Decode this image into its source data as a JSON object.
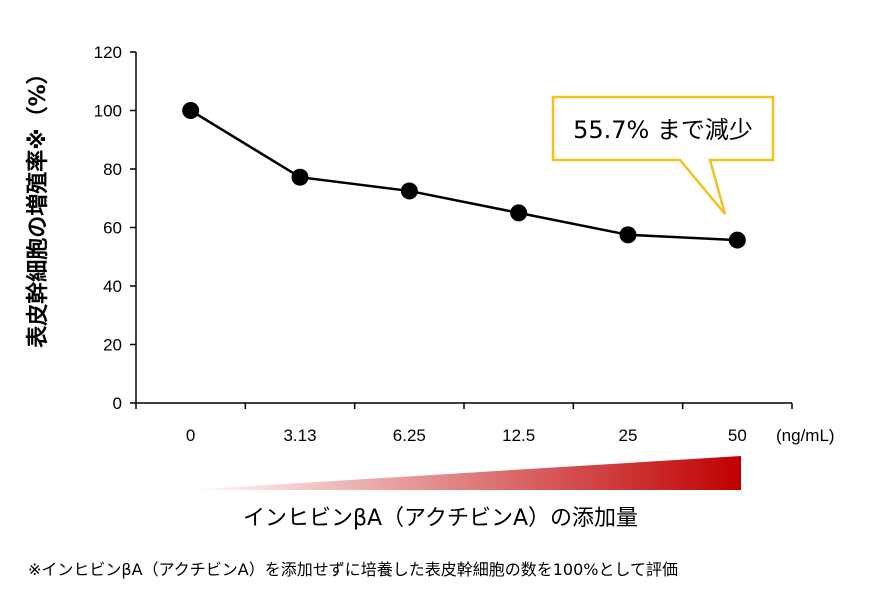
{
  "chart_data": {
    "type": "line",
    "categories": [
      "0",
      "3.13",
      "6.25",
      "12.5",
      "25",
      "50"
    ],
    "values": [
      100,
      77.2,
      72.5,
      65.0,
      57.5,
      55.7
    ],
    "x_unit": "(ng/mL)",
    "ylabel": "表皮幹細胞の増殖率※（%）",
    "xlabel": "インヒビンβA（アクチビンA）の添加量",
    "yticks": [
      0,
      20,
      40,
      60,
      80,
      100,
      120
    ],
    "ylim": [
      0,
      120
    ],
    "grid": false,
    "legend": "none",
    "annotation": "55.7% まで減少",
    "line_color": "#000000",
    "marker_color": "#000000",
    "callout_border": "#f2c21b",
    "gradient_start": "#ffffff",
    "gradient_end": "#c00000"
  },
  "footnote": "※インヒビンβA（アクチビンA）を添加せずに培養した表皮幹細胞の数を100%として評価"
}
